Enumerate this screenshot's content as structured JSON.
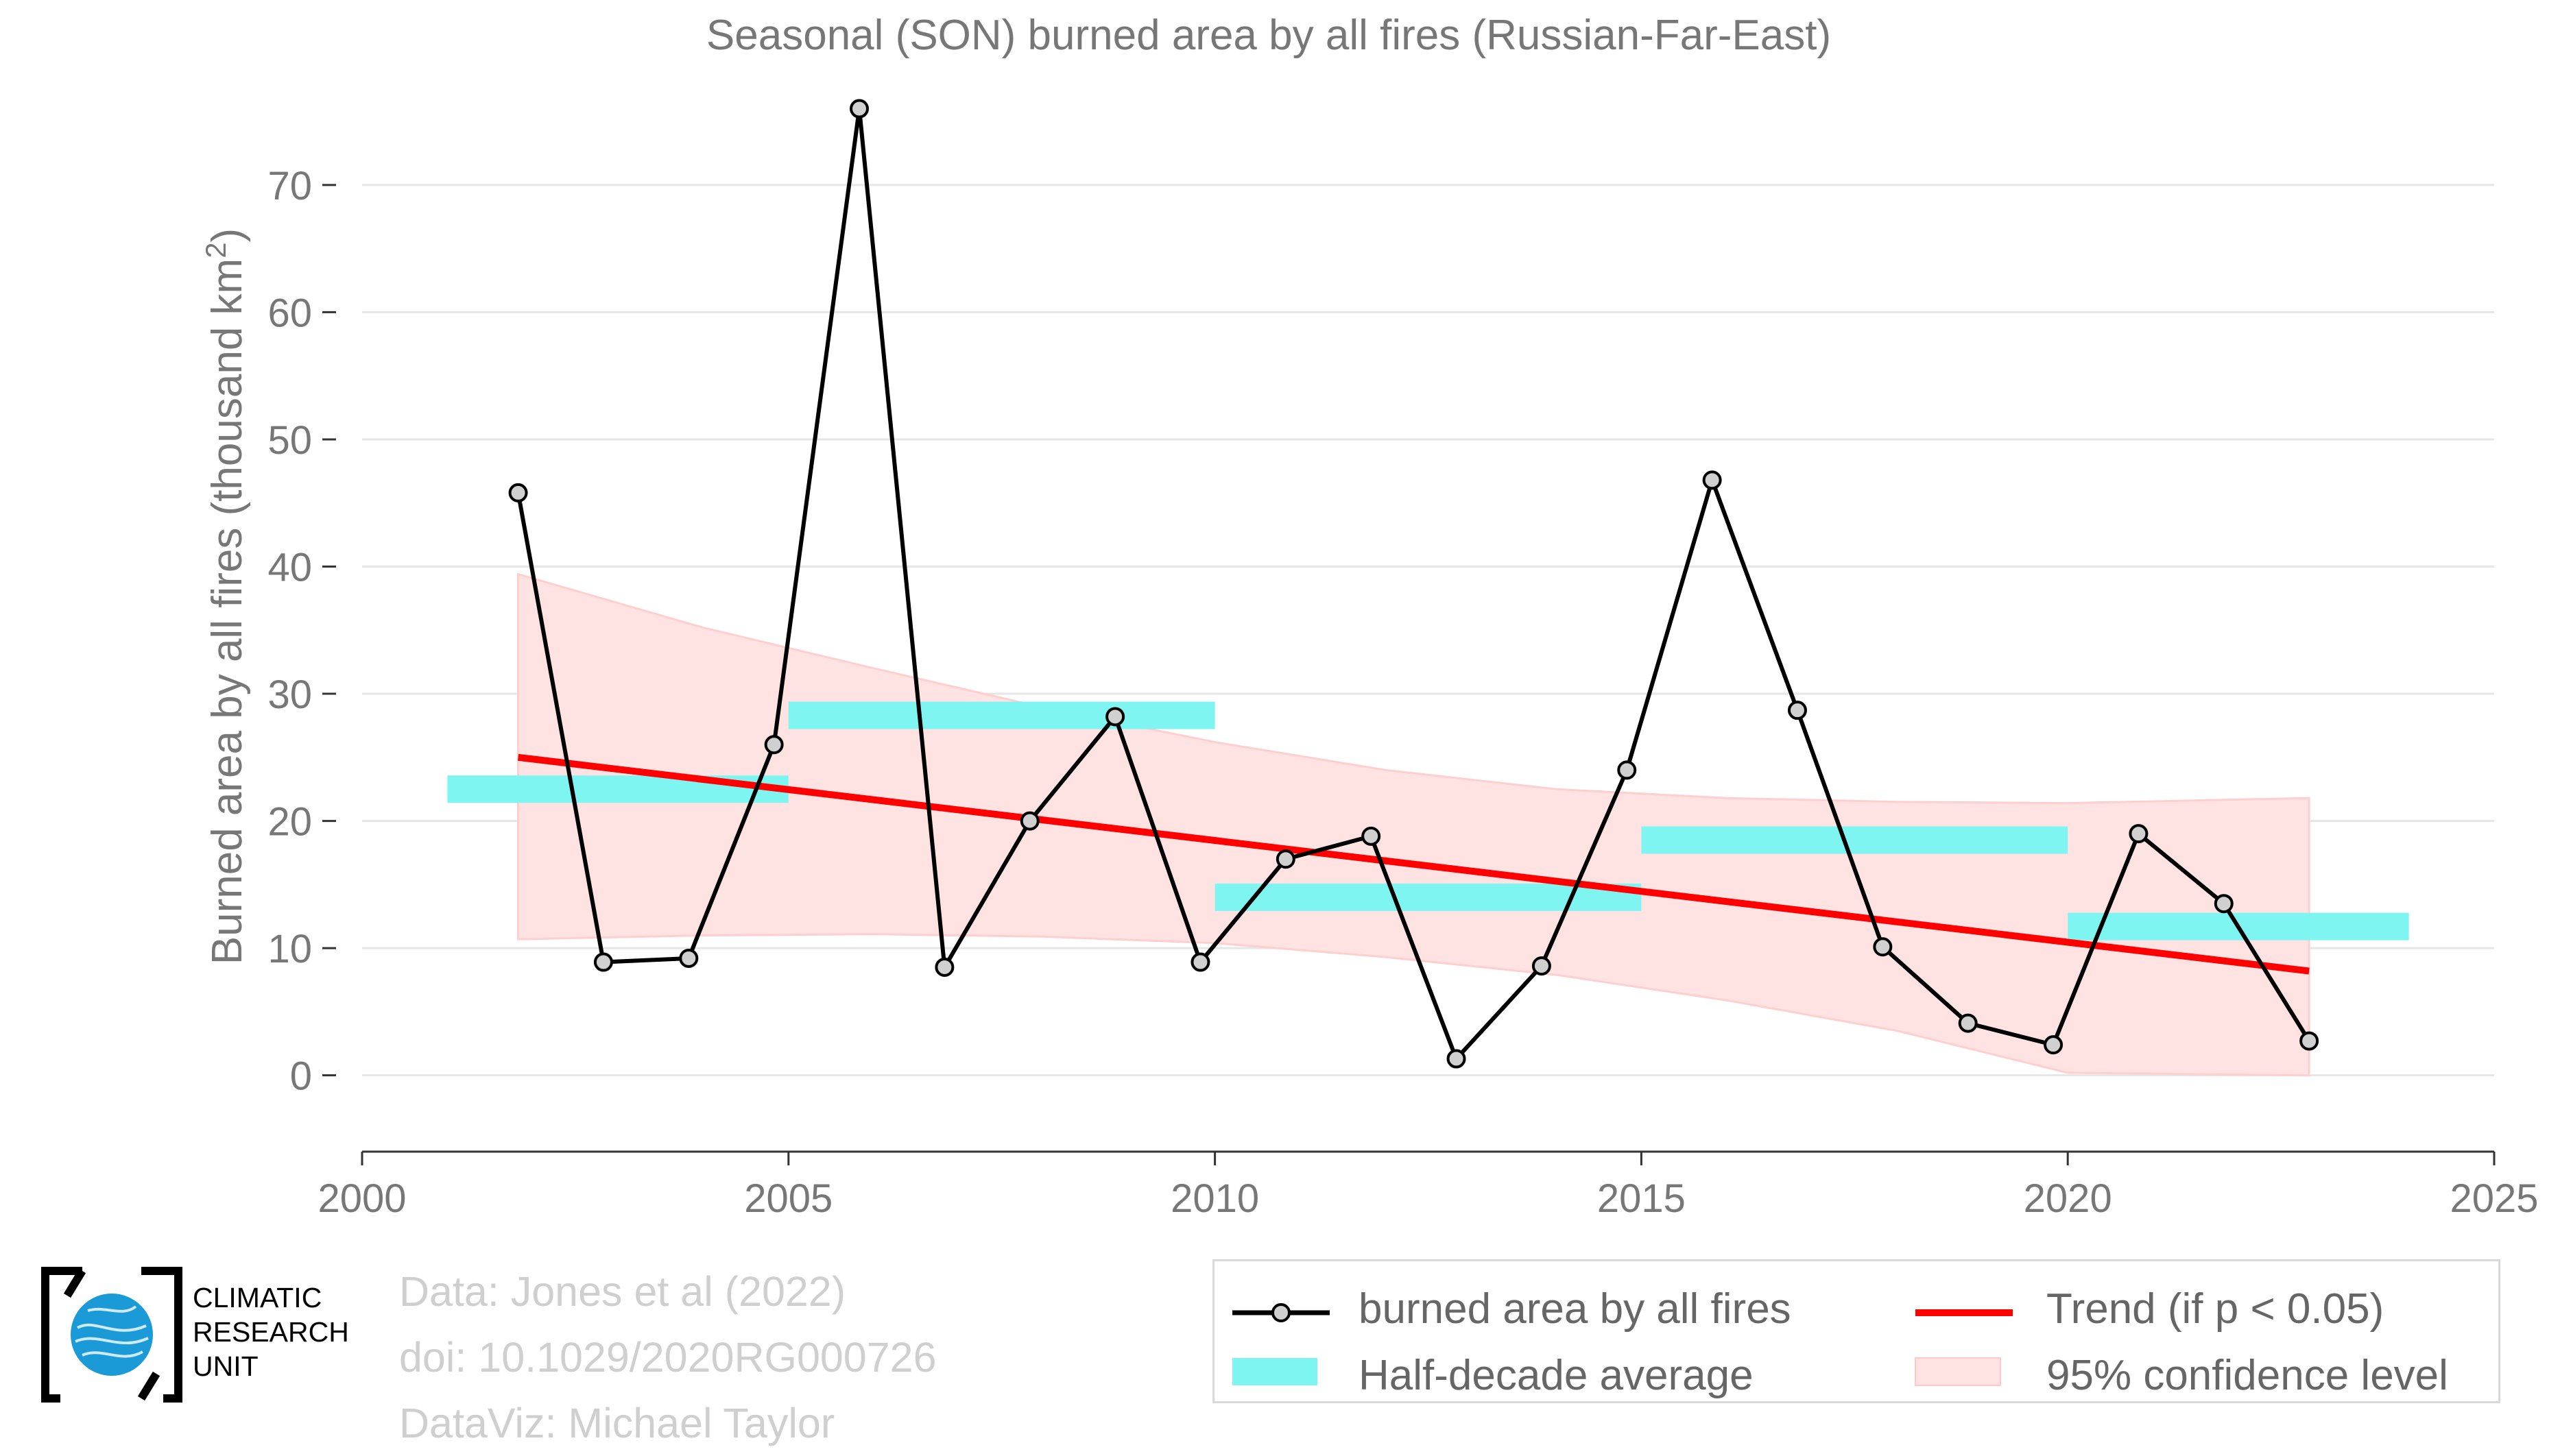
{
  "chart_data": {
    "type": "line",
    "title": "Seasonal (SON) burned area by all fires (Russian-Far-East)",
    "ylabel": "Burned area by all fires (thousand km²)",
    "xlabel": "",
    "xlim": [
      2000,
      2025
    ],
    "ylim": [
      -6,
      77
    ],
    "x_ticks": [
      "2000",
      "2005",
      "2010",
      "2015",
      "2020",
      "2025"
    ],
    "y_ticks": [
      "0",
      "10",
      "20",
      "30",
      "40",
      "50",
      "60",
      "70"
    ],
    "grid": "horizontal",
    "legend_position": "bottom-right",
    "series": [
      {
        "name": "burned area by all fires",
        "color": "#000000",
        "x": [
          2001.83,
          2002.83,
          2003.83,
          2004.83,
          2005.83,
          2006.83,
          2007.83,
          2008.83,
          2009.83,
          2010.83,
          2011.83,
          2012.83,
          2013.83,
          2014.83,
          2015.83,
          2016.83,
          2017.83,
          2018.83,
          2019.83,
          2020.83,
          2021.83,
          2022.83
        ],
        "values": [
          45.8,
          8.9,
          9.2,
          26.0,
          76.0,
          8.5,
          20.0,
          28.2,
          8.9,
          17.0,
          18.8,
          1.3,
          8.6,
          24.0,
          46.8,
          28.7,
          10.1,
          4.1,
          2.4,
          19.0,
          13.5,
          2.7
        ]
      }
    ],
    "half_decade_average": {
      "name": "Half-decade average",
      "color": "#7ff5f2",
      "segments": [
        {
          "x_start": 2001.0,
          "x_end": 2005.0,
          "value": 22.5
        },
        {
          "x_start": 2005.0,
          "x_end": 2010.0,
          "value": 28.3
        },
        {
          "x_start": 2010.0,
          "x_end": 2015.0,
          "value": 14.0
        },
        {
          "x_start": 2015.0,
          "x_end": 2020.0,
          "value": 18.5
        },
        {
          "x_start": 2020.0,
          "x_end": 2024.0,
          "value": 11.7
        }
      ]
    },
    "trend": {
      "name": "Trend (if p < 0.05)",
      "color": "#ff0000",
      "x": [
        2001.83,
        2022.83
      ],
      "values": [
        25.0,
        8.2
      ]
    },
    "confidence_band": {
      "name": "95% confidence level",
      "color": "#ffe3e3",
      "x": [
        2001.83,
        2004.0,
        2006.0,
        2008.0,
        2010.0,
        2012.0,
        2014.0,
        2016.0,
        2018.0,
        2020.0,
        2022.83
      ],
      "upper": [
        39.4,
        35.2,
        32.0,
        28.9,
        26.2,
        24.0,
        22.5,
        21.8,
        21.5,
        21.4,
        21.8
      ],
      "lower": [
        10.7,
        11.0,
        11.1,
        10.9,
        10.4,
        9.3,
        7.9,
        5.9,
        3.5,
        0.2,
        0.0
      ]
    }
  },
  "credits": {
    "line1": "Data: Jones et al (2022)",
    "line2": "doi: 10.1029/2020RG000726",
    "line3": "DataViz: Michael Taylor"
  },
  "logo": {
    "line1": "CLIMATIC",
    "line2": "RESEARCH",
    "line3": "UNIT",
    "globe_color": "#1a9ad6"
  },
  "legend": {
    "series_label": "burned area by all fires",
    "average_label": "Half-decade average",
    "trend_label": "Trend (if p < 0.05)",
    "ci_label": "95% confidence level"
  }
}
